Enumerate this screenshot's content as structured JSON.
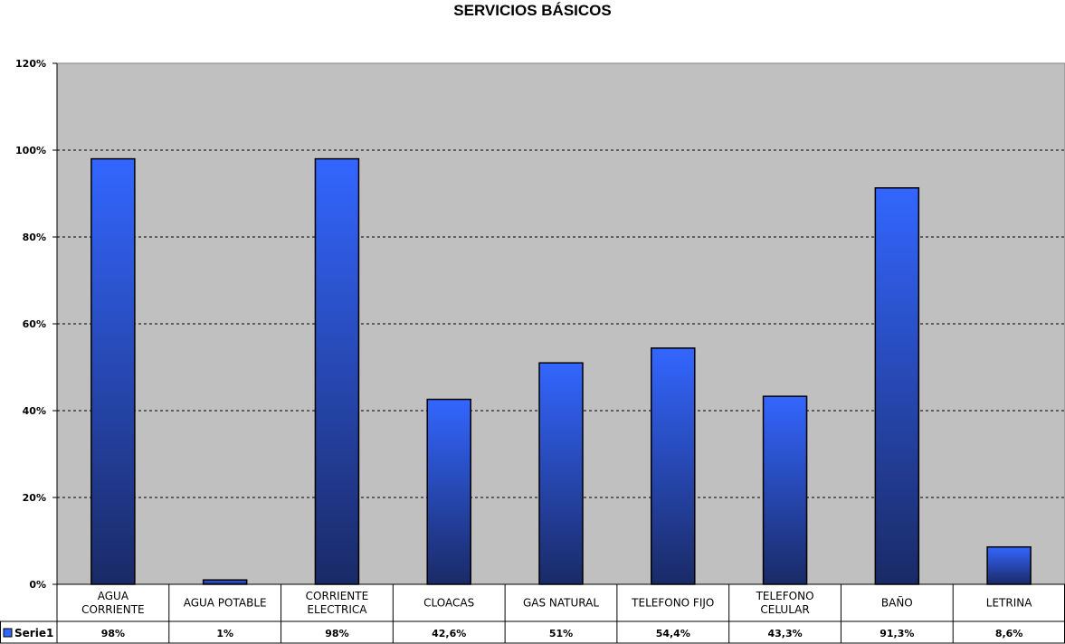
{
  "chart_data": {
    "type": "bar",
    "title": "SERVICIOS BÁSICOS",
    "categories": [
      [
        "AGUA",
        "CORRIENTE"
      ],
      [
        "AGUA POTABLE"
      ],
      [
        "CORRIENTE",
        "ELECTRICA"
      ],
      [
        "CLOACAS"
      ],
      [
        "GAS NATURAL"
      ],
      [
        "TELEFONO FIJO"
      ],
      [
        "TELEFONO",
        "CELULAR"
      ],
      [
        "BAÑO"
      ],
      [
        "LETRINA"
      ]
    ],
    "series": [
      {
        "name": "Serie1",
        "values": [
          98,
          1,
          98,
          42.6,
          51,
          54.4,
          43.3,
          91.3,
          8.6
        ],
        "labels": [
          "98%",
          "1%",
          "98%",
          "42,6%",
          "51%",
          "54,4%",
          "43,3%",
          "91,3%",
          "8,6%"
        ]
      }
    ],
    "ylim": [
      0,
      120
    ],
    "yticks": [
      0,
      20,
      40,
      60,
      80,
      100,
      120
    ],
    "ytick_labels": [
      "0%",
      "20%",
      "40%",
      "60%",
      "80%",
      "100%",
      "120%"
    ],
    "grid": true,
    "legend": "data-table",
    "colors": {
      "plot_bg": "#c0c0c0",
      "bar_top": "#3366ff",
      "bar_bottom": "#1a2a66",
      "bar_edge": "#000000",
      "grid": "#000000"
    }
  }
}
